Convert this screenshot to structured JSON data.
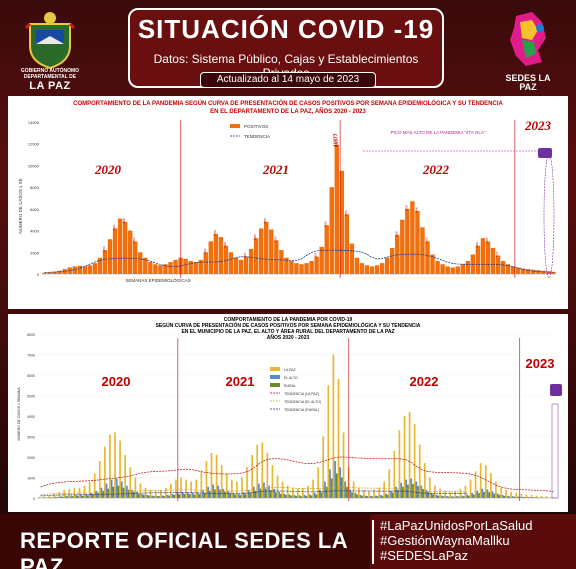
{
  "header": {
    "left_logo_text": "GOBIERNO AUTÓNOMO DEPARTAMENTAL DE",
    "left_logo_big": "LA PAZ",
    "title": "SITUACIÓN COVID -19",
    "subtitle": "Datos: Sistema Público, Cajas y Establecimientos Privados",
    "update": "Actualizado al 14 mayo de 2023",
    "right_logo_text": "SEDES LA PAZ"
  },
  "chart1": {
    "title_line1": "COMPORTAMIENTO DE LA PANDEMIA SEGÚN CURVA DE PRESENTACIÓN DE CASOS POSITIVOS POR SEMANA EPIDEMIOLÓGICA Y SU TENDENCIA",
    "title_line2": "EN EL DEPARTAMENTO DE LA PAZ, AÑOS 2020 - 2023",
    "legend_pos": "POSITIVOS",
    "legend_trend": "TENDENCIA",
    "annotation": "PICO MÁS ALTO DE LA PANDEMIA \"4TA OLA\"",
    "peak_label": "11877",
    "ylabel": "NÚMERO DE CASOS x SE",
    "xlabel": "SEMANAS EPIDEMIOLÓGICAS",
    "yticks": [
      "14000",
      "12000",
      "10000",
      "8000",
      "6000",
      "4000",
      "2000",
      "0"
    ],
    "years": [
      "2020",
      "2021",
      "2022",
      "2023"
    ]
  },
  "chart2": {
    "title_line1": "COMPORTAMIENTO DE LA PANDEMIA POR COVID-19",
    "title_line2": "SEGÚN CURVA DE PRESENTACIÓN DE CASOS POSITIVOS POR SEMANA EPIDEMIOLÓGICA Y SU TENDENCIA",
    "title_line3": "EN EL MUNICIPIO DE LA PAZ, EL ALTO Y ÁREA RURAL DEL DEPARTAMENTO DE LA PAZ",
    "title_line4": "AÑOS 2020 - 2023",
    "legend": [
      "LA PAZ",
      "EL ALTO",
      "RURAL",
      "TENDENCIA (LA PAZ)",
      "TENDENCIA (EL ALTO)",
      "TENDENCIA (RURAL)"
    ],
    "ylabel": "NÚMERO DE CASOS x SEMANA",
    "yticks": [
      "8000",
      "7000",
      "6000",
      "5000",
      "4000",
      "3000",
      "2000",
      "1000",
      "0"
    ],
    "years": [
      "2020",
      "2021",
      "2022",
      "2023"
    ]
  },
  "chart_data": [
    {
      "type": "bar",
      "title": "COMPORTAMIENTO DE LA PANDEMIA SEGÚN CURVA DE PRESENTACIÓN DE CASOS POSITIVOS POR SEMANA EPIDEMIOLÓGICA Y SU TENDENCIA EN EL DEPARTAMENTO DE LA PAZ, AÑOS 2020 - 2023",
      "ylabel": "NÚMERO DE CASOS x SE",
      "xlabel": "SEMANAS EPIDEMIOLÓGICAS",
      "ylim": [
        0,
        14000
      ],
      "series": [
        {
          "name": "POSITIVOS",
          "values": [
            100,
            150,
            200,
            300,
            450,
            600,
            700,
            750,
            700,
            800,
            1000,
            1500,
            2200,
            3200,
            4200,
            5100,
            4800,
            4000,
            3000,
            2000,
            1500,
            1100,
            900,
            800,
            900,
            1100,
            1300,
            1500,
            1400,
            1200,
            1100,
            1300,
            2000,
            3000,
            3700,
            3400,
            2600,
            2000,
            1500,
            1300,
            1600,
            2300,
            3300,
            4200,
            4800,
            4100,
            3100,
            2200,
            1500,
            1200,
            1000,
            900,
            1000,
            1200,
            1600,
            2500,
            4500,
            8000,
            11877,
            9500,
            5500,
            2800,
            1500,
            1000,
            800,
            700,
            800,
            1000,
            1500,
            2400,
            3600,
            5000,
            6000,
            6700,
            5800,
            4300,
            3000,
            1800,
            1200,
            900,
            700,
            600,
            700,
            900,
            1200,
            1800,
            2600,
            3300,
            3000,
            2400,
            1700,
            1200,
            900,
            700,
            600,
            500,
            450,
            400,
            350,
            300,
            250,
            200
          ]
        }
      ]
    },
    {
      "type": "bar",
      "title": "COMPORTAMIENTO DE LA PANDEMIA POR COVID-19 SEGÚN CURVA DE PRESENTACIÓN DE CASOS POSITIVOS POR SEMANA EPIDEMIOLÓGICA Y SU TENDENCIA EN EL MUNICIPIO DE LA PAZ, EL ALTO Y ÁREA RURAL DEL DEPARTAMENTO DE LA PAZ AÑOS 2020 - 2023",
      "ylabel": "NÚMERO DE CASOS x SEMANA",
      "ylim": [
        0,
        8000
      ],
      "series": [
        {
          "name": "LA PAZ",
          "values": [
            50,
            80,
            120,
            200,
            300,
            400,
            450,
            500,
            500,
            600,
            800,
            1200,
            1800,
            2500,
            3100,
            3200,
            2800,
            2100,
            1500,
            1000,
            700,
            500,
            400,
            350,
            400,
            500,
            700,
            900,
            1000,
            900,
            800,
            900,
            1300,
            1800,
            2200,
            2100,
            1600,
            1200,
            900,
            800,
            1000,
            1500,
            2100,
            2600,
            2700,
            2200,
            1600,
            1100,
            800,
            600,
            500,
            450,
            500,
            600,
            900,
            1500,
            3000,
            5500,
            7000,
            5800,
            3200,
            1500,
            800,
            500,
            400,
            350,
            400,
            500,
            800,
            1400,
            2300,
            3300,
            4000,
            4200,
            3600,
            2600,
            1700,
            1000,
            600,
            450,
            350,
            300,
            350,
            450,
            600,
            900,
            1300,
            1700,
            1600,
            1200,
            800,
            500,
            400,
            300,
            250,
            200,
            180,
            150,
            120,
            100,
            80,
            60
          ]
        },
        {
          "name": "EL ALTO",
          "values": [
            20,
            30,
            40,
            60,
            80,
            100,
            120,
            140,
            150,
            180,
            250,
            350,
            500,
            700,
            900,
            950,
            800,
            600,
            400,
            300,
            200,
            150,
            120,
            100,
            120,
            150,
            200,
            250,
            300,
            280,
            250,
            280,
            400,
            550,
            650,
            600,
            450,
            350,
            250,
            200,
            280,
            400,
            550,
            700,
            750,
            600,
            450,
            300,
            220,
            180,
            150,
            130,
            150,
            180,
            250,
            400,
            800,
            1400,
            1800,
            1500,
            800,
            400,
            250,
            150,
            120,
            100,
            120,
            150,
            220,
            350,
            550,
            750,
            900,
            950,
            800,
            600,
            400,
            250,
            150,
            120,
            100,
            90,
            100,
            120,
            160,
            250,
            350,
            450,
            420,
            320,
            220,
            150,
            110,
            90,
            70,
            60,
            50,
            40,
            30,
            20
          ]
        },
        {
          "name": "RURAL",
          "values": [
            10,
            20,
            30,
            40,
            60,
            80,
            90,
            100,
            110,
            130,
            180,
            250,
            350,
            450,
            550,
            600,
            500,
            400,
            300,
            200,
            150,
            120,
            100,
            90,
            100,
            120,
            150,
            180,
            200,
            190,
            170,
            190,
            250,
            350,
            420,
            400,
            300,
            230,
            170,
            140,
            180,
            260,
            350,
            430,
            460,
            380,
            280,
            200,
            150,
            120,
            100,
            90,
            100,
            120,
            170,
            280,
            550,
            950,
            1200,
            1000,
            550,
            280,
            170,
            110,
            90,
            80,
            90,
            110,
            160,
            260,
            400,
            550,
            650,
            680,
            580,
            430,
            290,
            180,
            110,
            85,
            70,
            65,
            70,
            85,
            110,
            170,
            240,
            300,
            280,
            210,
            150,
            100,
            75,
            60,
            50,
            40,
            35,
            30,
            25,
            20
          ]
        }
      ]
    }
  ]
}
